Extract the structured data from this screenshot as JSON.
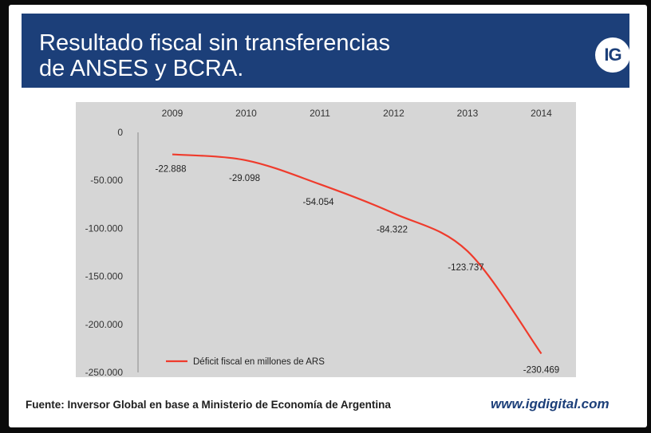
{
  "header": {
    "title_line1": "Resultado fiscal sin transferencias",
    "title_line2": "de ANSES y BCRA.",
    "logo_text": "IG"
  },
  "chart_data": {
    "type": "line",
    "x": [
      "2009",
      "2010",
      "2011",
      "2012",
      "2013",
      "2014"
    ],
    "series": [
      {
        "name": "Déficit fiscal en millones de ARS",
        "values": [
          -22888,
          -29098,
          -54054,
          -84322,
          -123737,
          -230469
        ],
        "labels": [
          "-22.888",
          "-29.098",
          "-54.054",
          "-84.322",
          "-123.737",
          "-230.469"
        ]
      }
    ],
    "yticks": [
      0,
      -50000,
      -100000,
      -150000,
      -200000,
      -250000
    ],
    "ytick_labels": [
      "0",
      "-50.000",
      "-100.000",
      "-150.000",
      "-200.000",
      "-250.000"
    ],
    "ylim": [
      -250000,
      0
    ],
    "x_axis_position": "top",
    "legend_position": "bottom-left",
    "grid": false,
    "plot_background": "#d6d6d6",
    "line_color": "#ef3b2c"
  },
  "footer": {
    "source": "Fuente: Inversor Global en base a Ministerio de Economía de Argentina",
    "website": "www.igdigital.com"
  },
  "colors": {
    "header_bg": "#1c3f79",
    "accent": "#1c3f79"
  }
}
